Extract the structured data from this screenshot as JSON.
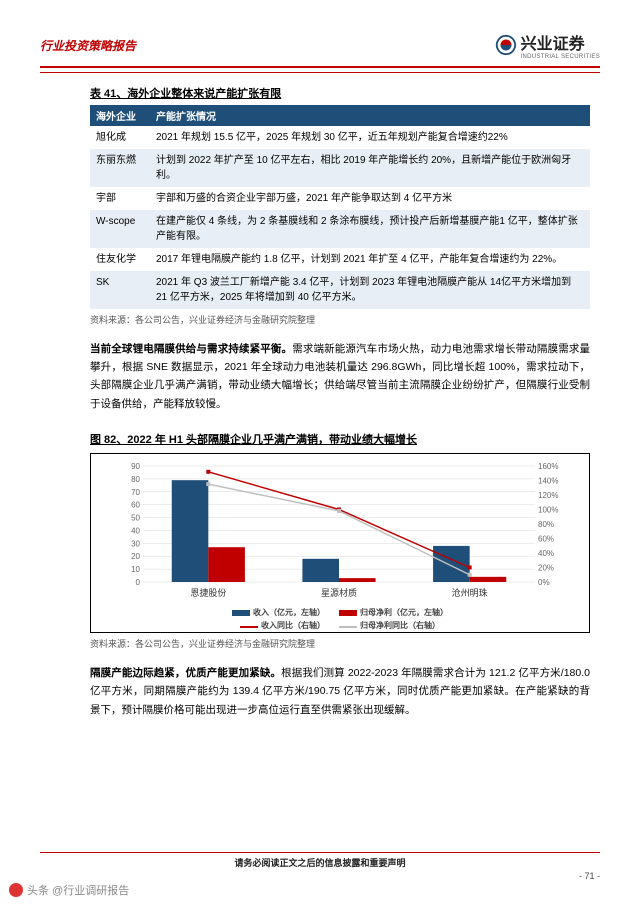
{
  "header": {
    "left": "行业投资策略报告",
    "brand": "兴业证券",
    "brand_sub": "INDUSTRIAL SECURITIES"
  },
  "table41": {
    "title": "表 41、海外企业整体来说产能扩张有限",
    "head": [
      "海外企业",
      "产能扩张情况"
    ],
    "rows": [
      [
        "旭化成",
        "2021 年规划 15.5 亿平，2025 年规划 30 亿平，近五年规划产能复合增速约22%"
      ],
      [
        "东丽东燃",
        "计划到 2022 年扩产至 10 亿平左右，相比 2019 年产能增长约 20%，且新增产能位于欧洲匈牙利。"
      ],
      [
        "宇部",
        "宇部和万盛的合资企业宇部万盛，2021 年产能争取达到 4 亿平方米"
      ],
      [
        "W-scope",
        "在建产能仅 4 条线，为 2 条基膜线和 2 条涂布膜线，预计投产后新增基膜产能1 亿平，整体扩张产能有限。"
      ],
      [
        "住友化学",
        "2017 年锂电隔膜产能约 1.8 亿平，计划到 2021 年扩至 4 亿平，产能年复合增速约为 22%。"
      ],
      [
        "SK",
        "2021 年 Q3 波兰工厂新增产能 3.4 亿平，计划到 2023 年锂电池隔膜产能从 14亿平方米增加到 21 亿平方米，2025 年将增加到 40 亿平方米。"
      ]
    ],
    "src": "资料来源：各公司公告，兴业证券经济与金融研究院整理"
  },
  "para1": {
    "hl": "当前全球锂电隔膜供给与需求持续紧平衡。",
    "body": "需求端新能源汽车市场火热，动力电池需求增长带动隔膜需求量攀升，根据 SNE 数据显示，2021 年全球动力电池装机量达 296.8GWh，同比增长超 100%，需求拉动下，头部隔膜企业几乎满产满销，带动业绩大幅增长；供给端尽管当前主流隔膜企业纷纷扩产，但隔膜行业受制于设备供给，产能释放较慢。"
  },
  "fig82": {
    "title": "图 82、2022 年 H1 头部隔膜企业几乎满产满销，带动业绩大幅增长",
    "categories": [
      "恩捷股份",
      "星源材质",
      "沧州明珠"
    ],
    "series": {
      "rev": {
        "label": "收入（亿元，左轴）",
        "color": "#1f4e79",
        "vals": [
          79,
          18,
          28
        ],
        "type": "bar"
      },
      "np": {
        "label": "归母净利（亿元，左轴）",
        "color": "#c00000",
        "vals": [
          27,
          3,
          4
        ],
        "type": "bar"
      },
      "rev_g": {
        "label": "收入同比（右轴）",
        "color": "#c00000",
        "vals": [
          152,
          100,
          20
        ],
        "type": "line"
      },
      "np_g": {
        "label": "归母净利同比（右轴）",
        "color": "#bfbfbf",
        "vals": [
          135,
          98,
          10
        ],
        "type": "line"
      }
    },
    "yl": {
      "min": 0,
      "max": 90,
      "step": 10,
      "color": "#666",
      "fontsize": 8
    },
    "yr": {
      "min": 0,
      "max": 160,
      "step": 20,
      "suffix": "%",
      "color": "#666",
      "fontsize": 8
    },
    "grid_color": "#d9d9d9",
    "bg": "#ffffff",
    "bar_width": 0.28,
    "src": "资料来源：各公司公告，兴业证券经济与金融研究院整理"
  },
  "para2": {
    "hl": "隔膜产能边际趋紧，优质产能更加紧缺。",
    "body": "根据我们测算 2022-2023 年隔膜需求合计为 121.2 亿平方米/180.0 亿平方米，同期隔膜产能约为 139.4 亿平方米/190.75 亿平方米，同时优质产能更加紧缺。在产能紧缺的背景下，预计隔膜价格可能出现进一步高位运行直至供需紧张出现缓解。"
  },
  "footer": {
    "txt": "请务必阅读正文之后的信息披露和重要声明",
    "page": "- 71 -"
  },
  "wm": "头条 @行业调研报告"
}
